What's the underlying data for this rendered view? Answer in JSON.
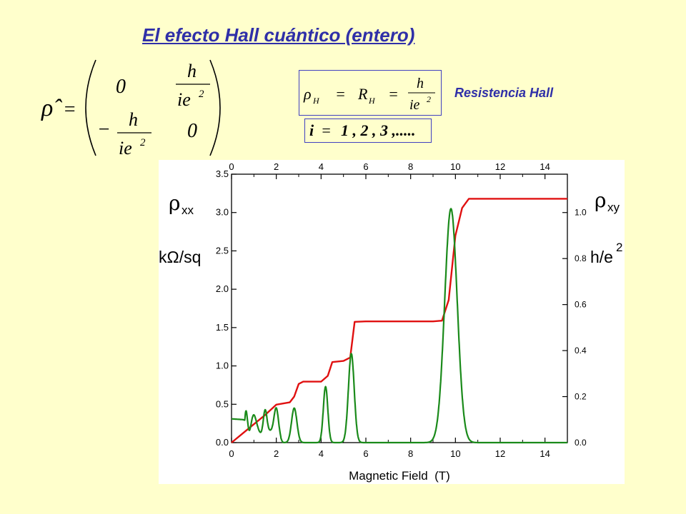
{
  "title": "El efecto Hall cuántico (entero)",
  "matrix": {
    "lhs": "ρ̂",
    "eq": "=",
    "m00": "0",
    "m11": "0",
    "minus": "−",
    "num": "h",
    "den": "ie",
    "exp": "2"
  },
  "hall_formula": {
    "rho": "ρ",
    "rho_sub": "H",
    "eq1": "=",
    "R": "R",
    "R_sub": "H",
    "eq2": "=",
    "num": "h",
    "den": "ie",
    "exp": "2"
  },
  "index_formula": {
    "var": "i",
    "eq": "=",
    "values": "1 , 2 , 3 ,....."
  },
  "hall_label": "Resistencia Hall",
  "colors": {
    "title": "#2f2fa8",
    "rho_xy": "#e01010",
    "rho_xx": "#1a8a1a",
    "background": "#ffffcc"
  },
  "chart_data": {
    "type": "line",
    "xlabel": "Magnetic Field  (T)",
    "x_ticks": [
      0,
      2,
      4,
      6,
      8,
      10,
      12,
      14
    ],
    "xlim": [
      0,
      15
    ],
    "left_axis": {
      "label_main": "ρ",
      "label_sub": "xx",
      "unit": "kΩ/sq",
      "ylim": [
        0,
        3.5
      ],
      "ticks": [
        "0.0",
        "0.5",
        "1.0",
        "1.5",
        "2.0",
        "2.5",
        "3.0",
        "3.5"
      ]
    },
    "right_axis": {
      "label_main": "ρ",
      "label_sub": "xy",
      "unit_main": "h/e",
      "unit_sup": "2",
      "ylim": [
        0,
        1.1667
      ],
      "ticks": [
        "0.0",
        "0.2",
        "0.4",
        "0.6",
        "0.8",
        "1.0"
      ]
    },
    "series": [
      {
        "key": "rho_xy",
        "axis": "right",
        "x": [
          0,
          0.5,
          1.0,
          1.5,
          2.0,
          2.3,
          2.6,
          2.8,
          3.0,
          3.2,
          3.5,
          4.0,
          4.3,
          4.5,
          5.0,
          5.3,
          5.5,
          6.0,
          7.0,
          8.0,
          9.0,
          9.4,
          9.7,
          10.0,
          10.3,
          10.6,
          11.0,
          12.0,
          13.0,
          14.0,
          15.0
        ],
        "y": [
          0.0,
          0.04,
          0.08,
          0.12,
          0.165,
          0.17,
          0.175,
          0.2,
          0.255,
          0.265,
          0.265,
          0.265,
          0.29,
          0.35,
          0.355,
          0.37,
          0.525,
          0.527,
          0.527,
          0.527,
          0.527,
          0.53,
          0.62,
          0.9,
          1.02,
          1.06,
          1.06,
          1.06,
          1.06,
          1.06,
          1.06
        ]
      },
      {
        "key": "rho_xx",
        "axis": "left",
        "baseline": [
          [
            0,
            0.31
          ],
          [
            0.5,
            0.3
          ],
          [
            1.0,
            0.26
          ],
          [
            1.5,
            0.16
          ],
          [
            2.0,
            0.06
          ],
          [
            2.3,
            0.0
          ]
        ],
        "oscillation": {
          "from": 0.6,
          "to": 2.2,
          "amplitude": 0.11,
          "decay_to": 0.02
        },
        "peaks": [
          {
            "x": 1.5,
            "height": 0.3,
            "width": 0.08
          },
          {
            "x": 2.0,
            "height": 0.36,
            "width": 0.1
          },
          {
            "x": 2.8,
            "height": 0.45,
            "width": 0.12
          },
          {
            "x": 4.2,
            "height": 0.73,
            "width": 0.1
          },
          {
            "x": 5.35,
            "height": 1.16,
            "width": 0.13
          },
          {
            "x": 9.8,
            "height": 3.05,
            "width": 0.28
          }
        ]
      }
    ]
  }
}
